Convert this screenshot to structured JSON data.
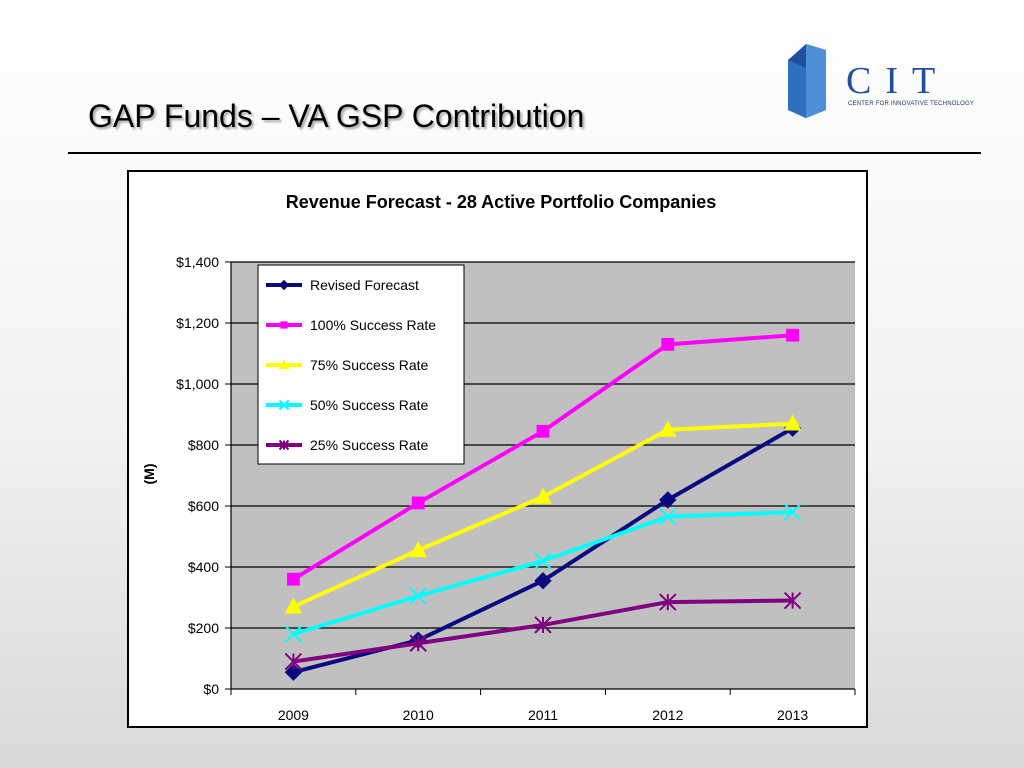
{
  "slide": {
    "title": "GAP Funds – VA GSP Contribution"
  },
  "logo": {
    "wordmark": "CIT",
    "tagline": "CENTER FOR INNOVATIVE TECHNOLOGY",
    "color": "#1f4fa0"
  },
  "chart_data": {
    "type": "line",
    "title": "Revenue Forecast - 28 Active Portfolio Companies",
    "xlabel": "",
    "ylabel": "(M)",
    "categories": [
      "2009",
      "2010",
      "2011",
      "2012",
      "2013"
    ],
    "ylim": [
      0,
      1400
    ],
    "yticks": [
      0,
      200,
      400,
      600,
      800,
      1000,
      1200,
      1400
    ],
    "ytick_labels": [
      "$0",
      "$200",
      "$400",
      "$600",
      "$800",
      "$1,000",
      "$1,200",
      "$1,400"
    ],
    "grid": "horizontal",
    "plot_background": "#c0c0c0",
    "legend_position": "top-left",
    "series": [
      {
        "name": "Revised Forecast",
        "values": [
          55,
          160,
          355,
          620,
          855
        ],
        "color": "#0a0a80",
        "marker": "diamond"
      },
      {
        "name": "100% Success Rate",
        "values": [
          360,
          610,
          845,
          1130,
          1160
        ],
        "color": "#ff00ff",
        "marker": "square"
      },
      {
        "name": "75% Success Rate",
        "values": [
          270,
          455,
          630,
          850,
          870
        ],
        "color": "#ffff00",
        "marker": "triangle"
      },
      {
        "name": "50% Success Rate",
        "values": [
          180,
          305,
          420,
          565,
          580
        ],
        "color": "#00ffff",
        "marker": "x"
      },
      {
        "name": "25% Success Rate",
        "values": [
          90,
          150,
          210,
          285,
          290
        ],
        "color": "#800080",
        "marker": "star"
      }
    ]
  }
}
